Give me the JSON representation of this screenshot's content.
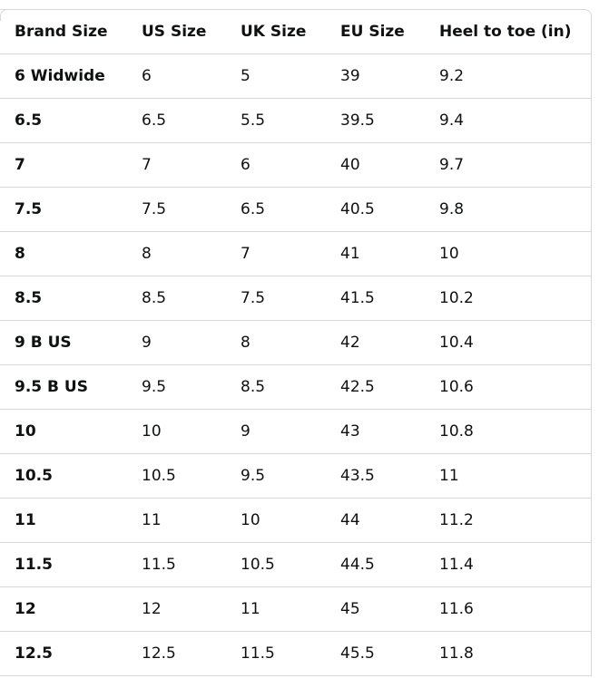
{
  "table": {
    "headers": [
      "Brand Size",
      "US Size",
      "UK Size",
      "EU Size",
      "Heel to toe (in)"
    ],
    "rows": [
      [
        "6 Widwide",
        "6",
        "5",
        "39",
        "9.2"
      ],
      [
        "6.5",
        "6.5",
        "5.5",
        "39.5",
        "9.4"
      ],
      [
        "7",
        "7",
        "6",
        "40",
        "9.7"
      ],
      [
        "7.5",
        "7.5",
        "6.5",
        "40.5",
        "9.8"
      ],
      [
        "8",
        "8",
        "7",
        "41",
        "10"
      ],
      [
        "8.5",
        "8.5",
        "7.5",
        "41.5",
        "10.2"
      ],
      [
        "9 B US",
        "9",
        "8",
        "42",
        "10.4"
      ],
      [
        "9.5 B US",
        "9.5",
        "8.5",
        "42.5",
        "10.6"
      ],
      [
        "10",
        "10",
        "9",
        "43",
        "10.8"
      ],
      [
        "10.5",
        "10.5",
        "9.5",
        "43.5",
        "11"
      ],
      [
        "11",
        "11",
        "10",
        "44",
        "11.2"
      ],
      [
        "11.5",
        "11.5",
        "10.5",
        "44.5",
        "11.4"
      ],
      [
        "12",
        "12",
        "11",
        "45",
        "11.6"
      ],
      [
        "12.5",
        "12.5",
        "11.5",
        "45.5",
        "11.8"
      ]
    ]
  }
}
